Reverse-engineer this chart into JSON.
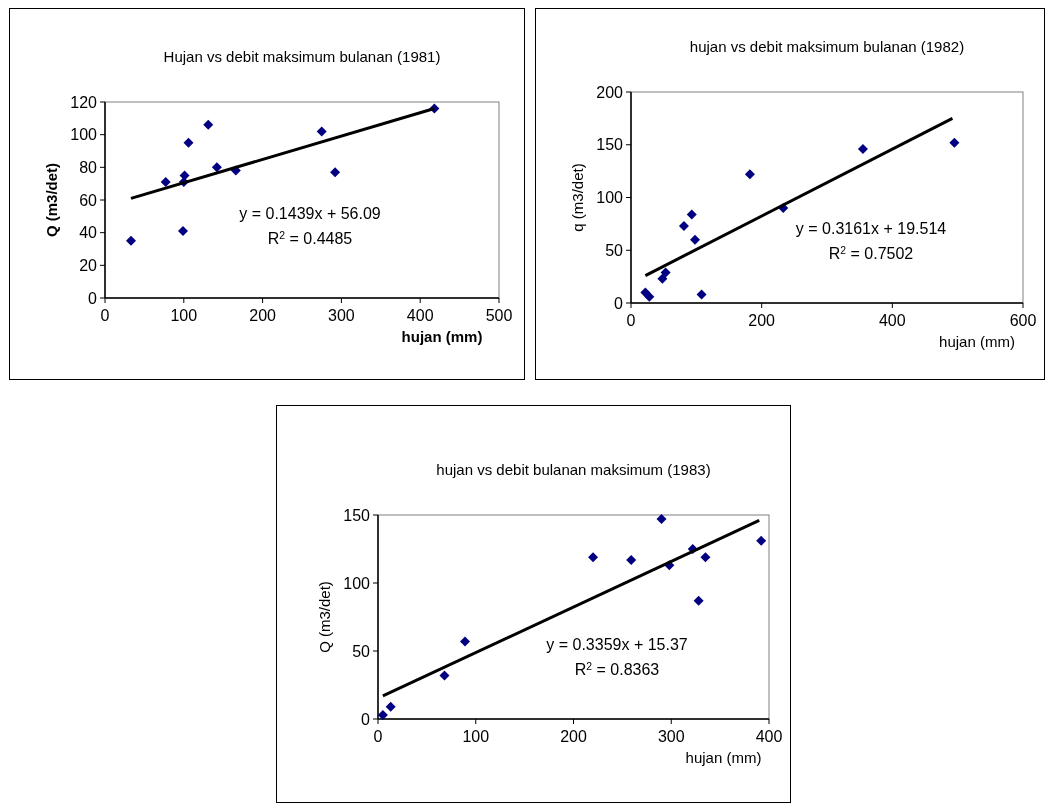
{
  "chart_data": [
    {
      "type": "scatter",
      "title": "Hujan vs debit maksimum bulanan (1981)",
      "xlabel": "hujan (mm)",
      "ylabel": "Q (m3/det)",
      "xlim": [
        0,
        500
      ],
      "xticks": [
        0,
        100,
        200,
        300,
        400,
        500
      ],
      "ylim": [
        0,
        120
      ],
      "yticks": [
        0,
        20,
        40,
        60,
        80,
        100,
        120
      ],
      "grid": false,
      "series": [
        {
          "color": "#000080",
          "marker": "diamond",
          "x": [
            33,
            77,
            99,
            100,
            101,
            106,
            131,
            142,
            166,
            275,
            292,
            418
          ],
          "values": [
            35,
            71,
            41,
            71,
            75,
            95,
            106,
            80,
            78,
            102,
            77,
            116
          ]
        },
        {
          "type": "line",
          "color": "#000000",
          "x": [
            33,
            418
          ],
          "marker": "none",
          "values": [
            61,
            116
          ]
        }
      ],
      "annotations": [
        "y = 0.1439x + 56.09",
        "R$^{2}$ = 0.4485"
      ]
    },
    {
      "type": "scatter",
      "title": "hujan vs debit maksimum bulanan (1982)",
      "xlabel": "hujan (mm)",
      "ylabel": "q (m3/det)",
      "xlim": [
        0,
        600
      ],
      "xticks": [
        0,
        200,
        400,
        600
      ],
      "ylim": [
        0,
        200
      ],
      "yticks": [
        0,
        50,
        100,
        150,
        200
      ],
      "grid": false,
      "series": [
        {
          "color": "#000080",
          "marker": "diamond",
          "x": [
            22,
            28,
            48,
            53,
            81,
            93,
            98,
            108,
            182,
            233,
            355,
            495
          ],
          "values": [
            10,
            6,
            23,
            29,
            73,
            84,
            60,
            8,
            122,
            90,
            146,
            152
          ]
        },
        {
          "type": "line",
          "color": "#000000",
          "x": [
            22,
            492
          ],
          "marker": "none",
          "values": [
            26,
            175
          ]
        }
      ],
      "annotations": [
        "y = 0.3161x + 19.514",
        "R$^{2}$ = 0.7502"
      ]
    },
    {
      "type": "scatter",
      "title": "hujan vs debit bulanan maksimum (1983)",
      "xlabel": "hujan (mm)",
      "ylabel": "Q (m3/det)",
      "xlim": [
        0,
        400
      ],
      "xticks": [
        0,
        100,
        200,
        300,
        400
      ],
      "ylim": [
        0,
        150
      ],
      "yticks": [
        0,
        50,
        100,
        150
      ],
      "grid": false,
      "series": [
        {
          "color": "#000080",
          "marker": "diamond",
          "x": [
            5,
            13,
            68,
            89,
            220,
            259,
            290,
            298,
            322,
            328,
            335,
            392
          ],
          "values": [
            3,
            9,
            32,
            57,
            119,
            117,
            147,
            113,
            125,
            87,
            119,
            131
          ]
        },
        {
          "type": "line",
          "color": "#000000",
          "x": [
            5,
            390
          ],
          "marker": "none",
          "values": [
            17,
            146
          ]
        }
      ],
      "annotations": [
        "y = 0.3359x + 15.37",
        "R$^{2}$ = 0.8363"
      ]
    }
  ]
}
